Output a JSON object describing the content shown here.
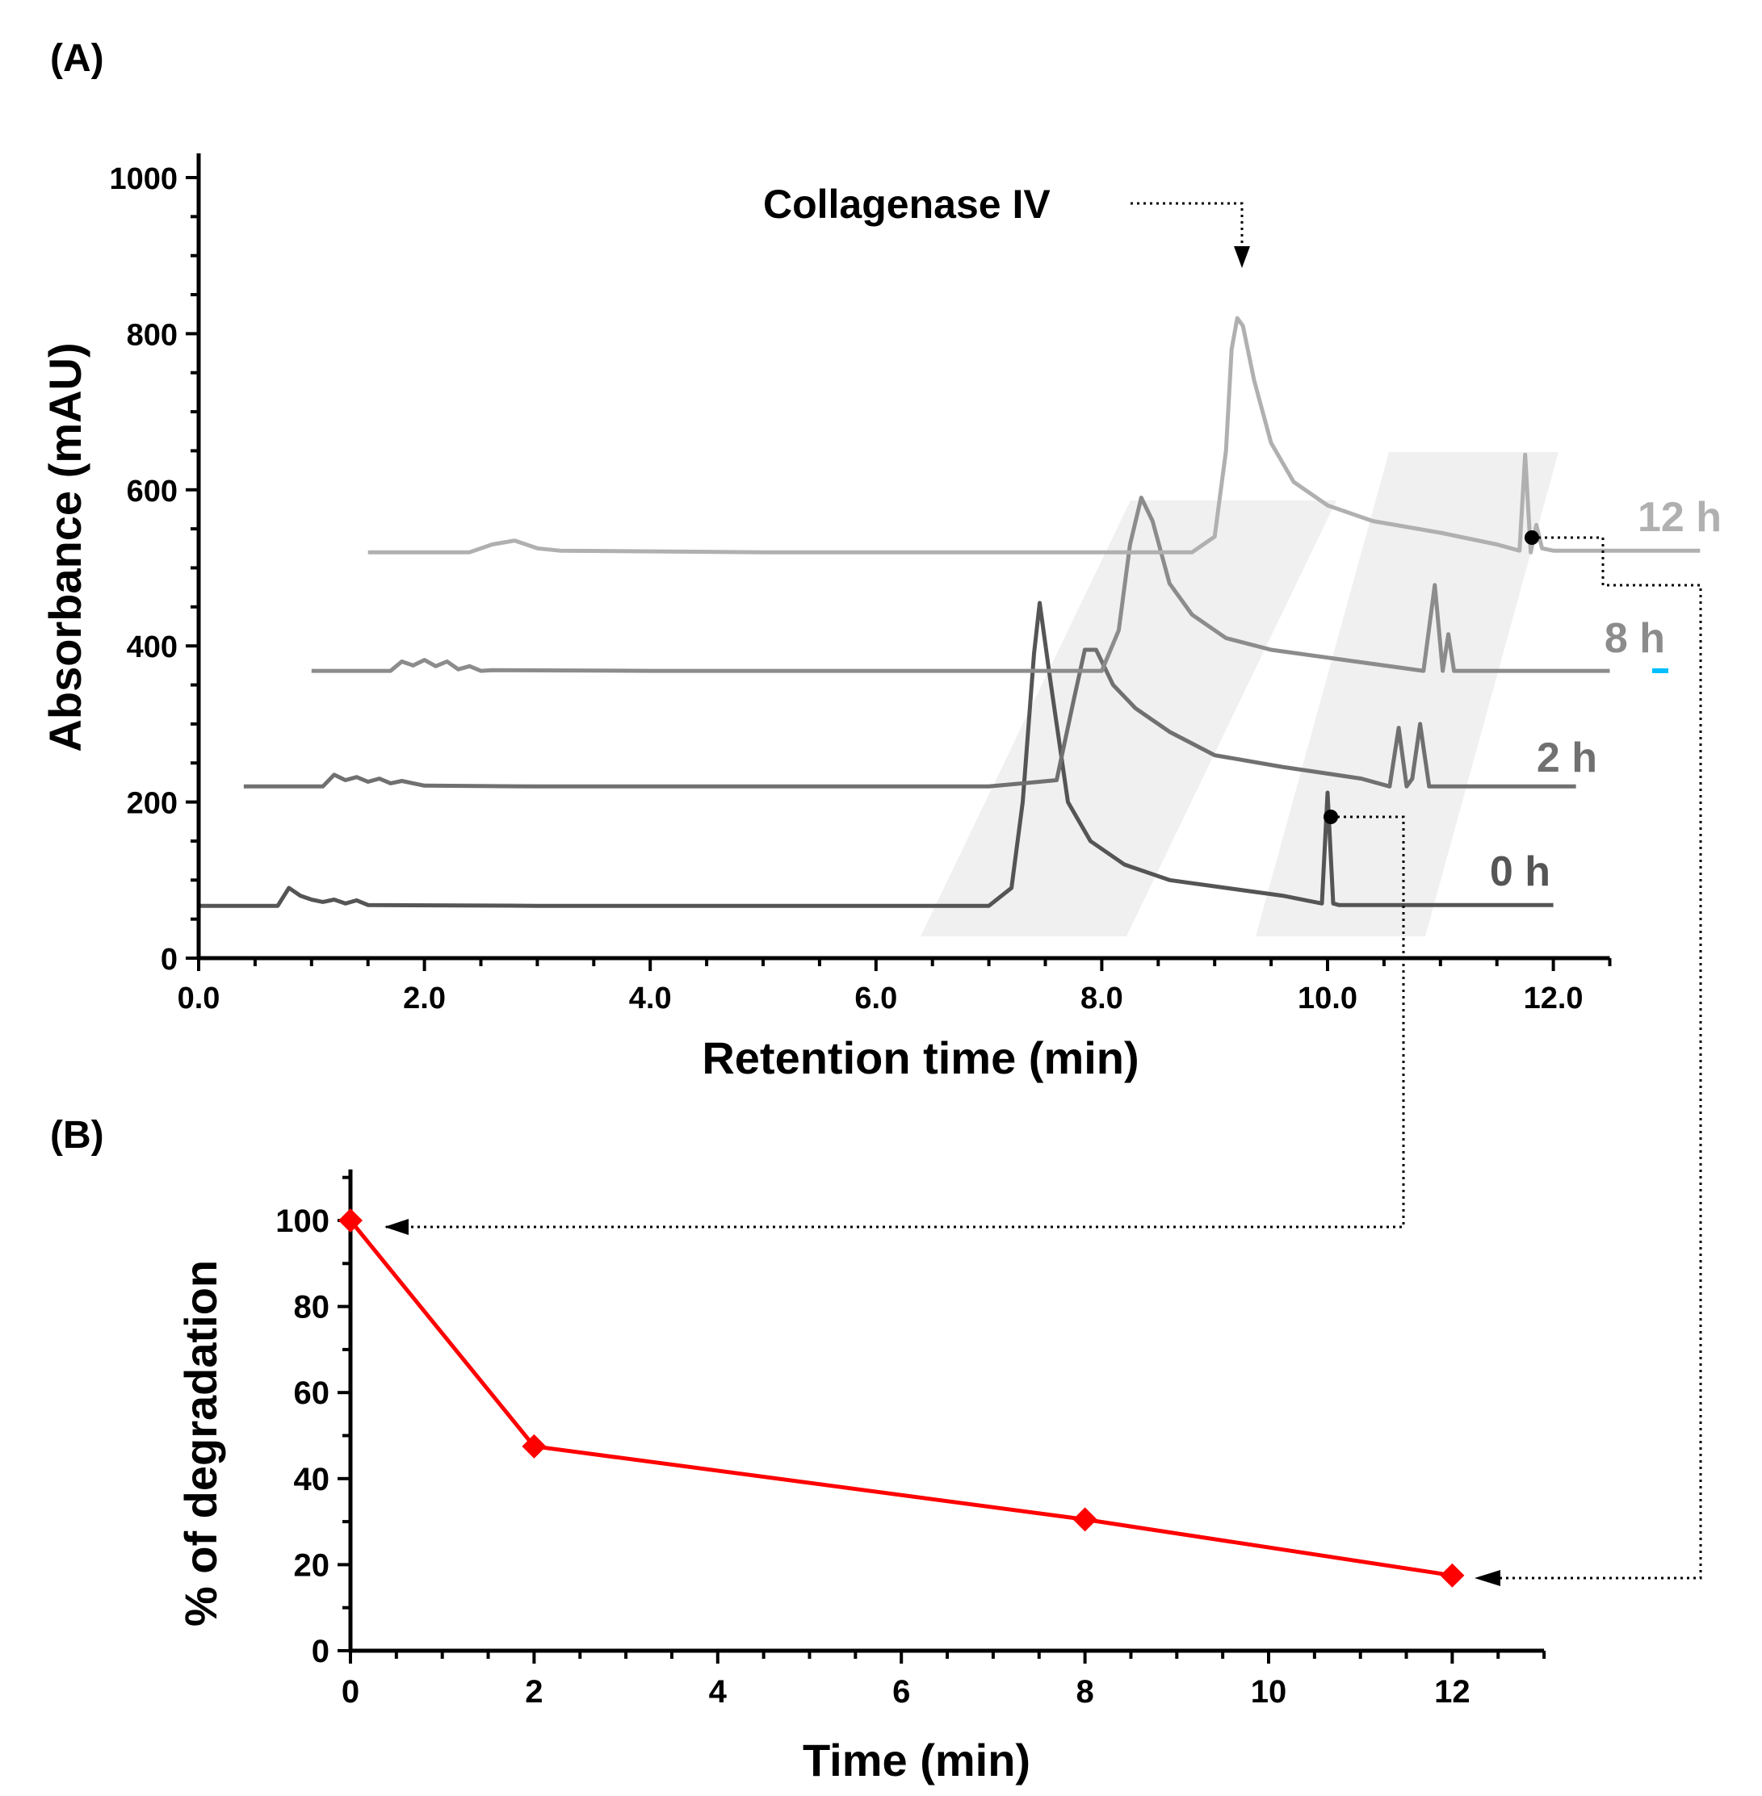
{
  "chart_data": [
    {
      "panel": "A",
      "panel_label": "(A)",
      "type": "line",
      "title": "",
      "xlabel": "Retention time (min)",
      "ylabel": "Absorbance (mAU)",
      "xlim": [
        0,
        12.5
      ],
      "ylim": [
        0,
        1000
      ],
      "xticks": [
        0,
        2,
        4,
        6,
        8,
        10,
        12
      ],
      "xtick_labels": [
        "0.0",
        "2.0",
        "4.0",
        "6.0",
        "8.0",
        "10.0",
        "12.0"
      ],
      "yticks": [
        0,
        200,
        400,
        600,
        800,
        1000
      ],
      "ytick_labels": [
        "0",
        "200",
        "400",
        "600",
        "800",
        "1000"
      ],
      "annotation": "Collagenase IV",
      "series": [
        {
          "name": "0 h",
          "label": "0 h",
          "color": "#555555",
          "x": [
            0,
            0.7,
            0.8,
            0.9,
            1.0,
            1.1,
            1.2,
            1.3,
            1.4,
            1.5,
            3,
            5,
            7,
            7.2,
            7.3,
            7.4,
            7.45,
            7.55,
            7.7,
            7.9,
            8.2,
            8.6,
            9.1,
            9.6,
            9.95,
            10.0,
            10.05,
            10.1,
            10.2,
            12.0
          ],
          "y": [
            67,
            67,
            90,
            80,
            75,
            72,
            75,
            70,
            74,
            68,
            67,
            67,
            67,
            90,
            200,
            390,
            455,
            350,
            200,
            150,
            120,
            100,
            90,
            80,
            70,
            212,
            70,
            68,
            68,
            68
          ]
        },
        {
          "name": "2 h",
          "label": "2 h",
          "color": "#707070",
          "x": [
            0.4,
            1.1,
            1.2,
            1.3,
            1.4,
            1.5,
            1.6,
            1.7,
            1.8,
            2.0,
            3,
            5,
            7,
            7.6,
            7.75,
            7.85,
            7.95,
            8.1,
            8.3,
            8.6,
            9.0,
            9.6,
            10.3,
            10.55,
            10.63,
            10.7,
            10.75,
            10.82,
            10.9,
            11,
            12.2
          ],
          "y": [
            220,
            220,
            235,
            228,
            232,
            226,
            230,
            224,
            227,
            221,
            220,
            220,
            220,
            228,
            330,
            395,
            395,
            350,
            320,
            290,
            260,
            245,
            230,
            220,
            295,
            220,
            230,
            300,
            220,
            220,
            220
          ]
        },
        {
          "name": "8 h",
          "label": "8 h",
          "color": "#8c8c8c",
          "x": [
            1.0,
            1.7,
            1.8,
            1.9,
            2.0,
            2.1,
            2.2,
            2.3,
            2.4,
            2.5,
            2.6,
            4,
            6,
            8,
            8.15,
            8.25,
            8.35,
            8.45,
            8.6,
            8.8,
            9.1,
            9.5,
            10.0,
            10.5,
            10.85,
            10.95,
            11.02,
            11.07,
            11.12,
            11.2,
            12.5
          ],
          "y": [
            368,
            368,
            380,
            375,
            382,
            374,
            380,
            370,
            374,
            368,
            369,
            368,
            368,
            368,
            420,
            530,
            590,
            560,
            480,
            440,
            410,
            395,
            385,
            375,
            368,
            478,
            368,
            415,
            368,
            368,
            368
          ]
        },
        {
          "name": "12 h",
          "label": "12 h",
          "color": "#b0b0b0",
          "x": [
            1.5,
            2.4,
            2.6,
            2.8,
            3.0,
            3.2,
            5,
            7,
            8.8,
            9.0,
            9.1,
            9.15,
            9.2,
            9.25,
            9.35,
            9.5,
            9.7,
            10.0,
            10.4,
            11.0,
            11.5,
            11.7,
            11.75,
            11.8,
            11.85,
            11.9,
            12.0,
            12.2,
            13.3
          ],
          "y": [
            520,
            520,
            530,
            535,
            525,
            522,
            520,
            520,
            520,
            540,
            650,
            780,
            820,
            810,
            740,
            660,
            610,
            580,
            560,
            545,
            530,
            522,
            645,
            520,
            555,
            525,
            522,
            522,
            522
          ]
        }
      ]
    },
    {
      "panel": "B",
      "panel_label": "(B)",
      "type": "line",
      "title": "",
      "xlabel": "Time (min)",
      "ylabel": "% of degradation",
      "xlim": [
        0,
        13
      ],
      "ylim": [
        0,
        110
      ],
      "xticks": [
        0,
        2,
        4,
        6,
        8,
        10,
        12
      ],
      "xtick_labels": [
        "0",
        "2",
        "4",
        "6",
        "8",
        "10",
        "12"
      ],
      "yticks": [
        0,
        20,
        40,
        60,
        80,
        100
      ],
      "ytick_labels": [
        "0",
        "20",
        "40",
        "60",
        "80",
        "100"
      ],
      "series": [
        {
          "name": "% of degradation",
          "color": "#ff0000",
          "x": [
            0,
            2,
            8,
            12
          ],
          "y": [
            100,
            47.5,
            30.5,
            17.5
          ]
        }
      ]
    }
  ],
  "colors": {
    "axis": "#000000",
    "line_b": "#ff0000",
    "highlight": "#00bfff"
  }
}
